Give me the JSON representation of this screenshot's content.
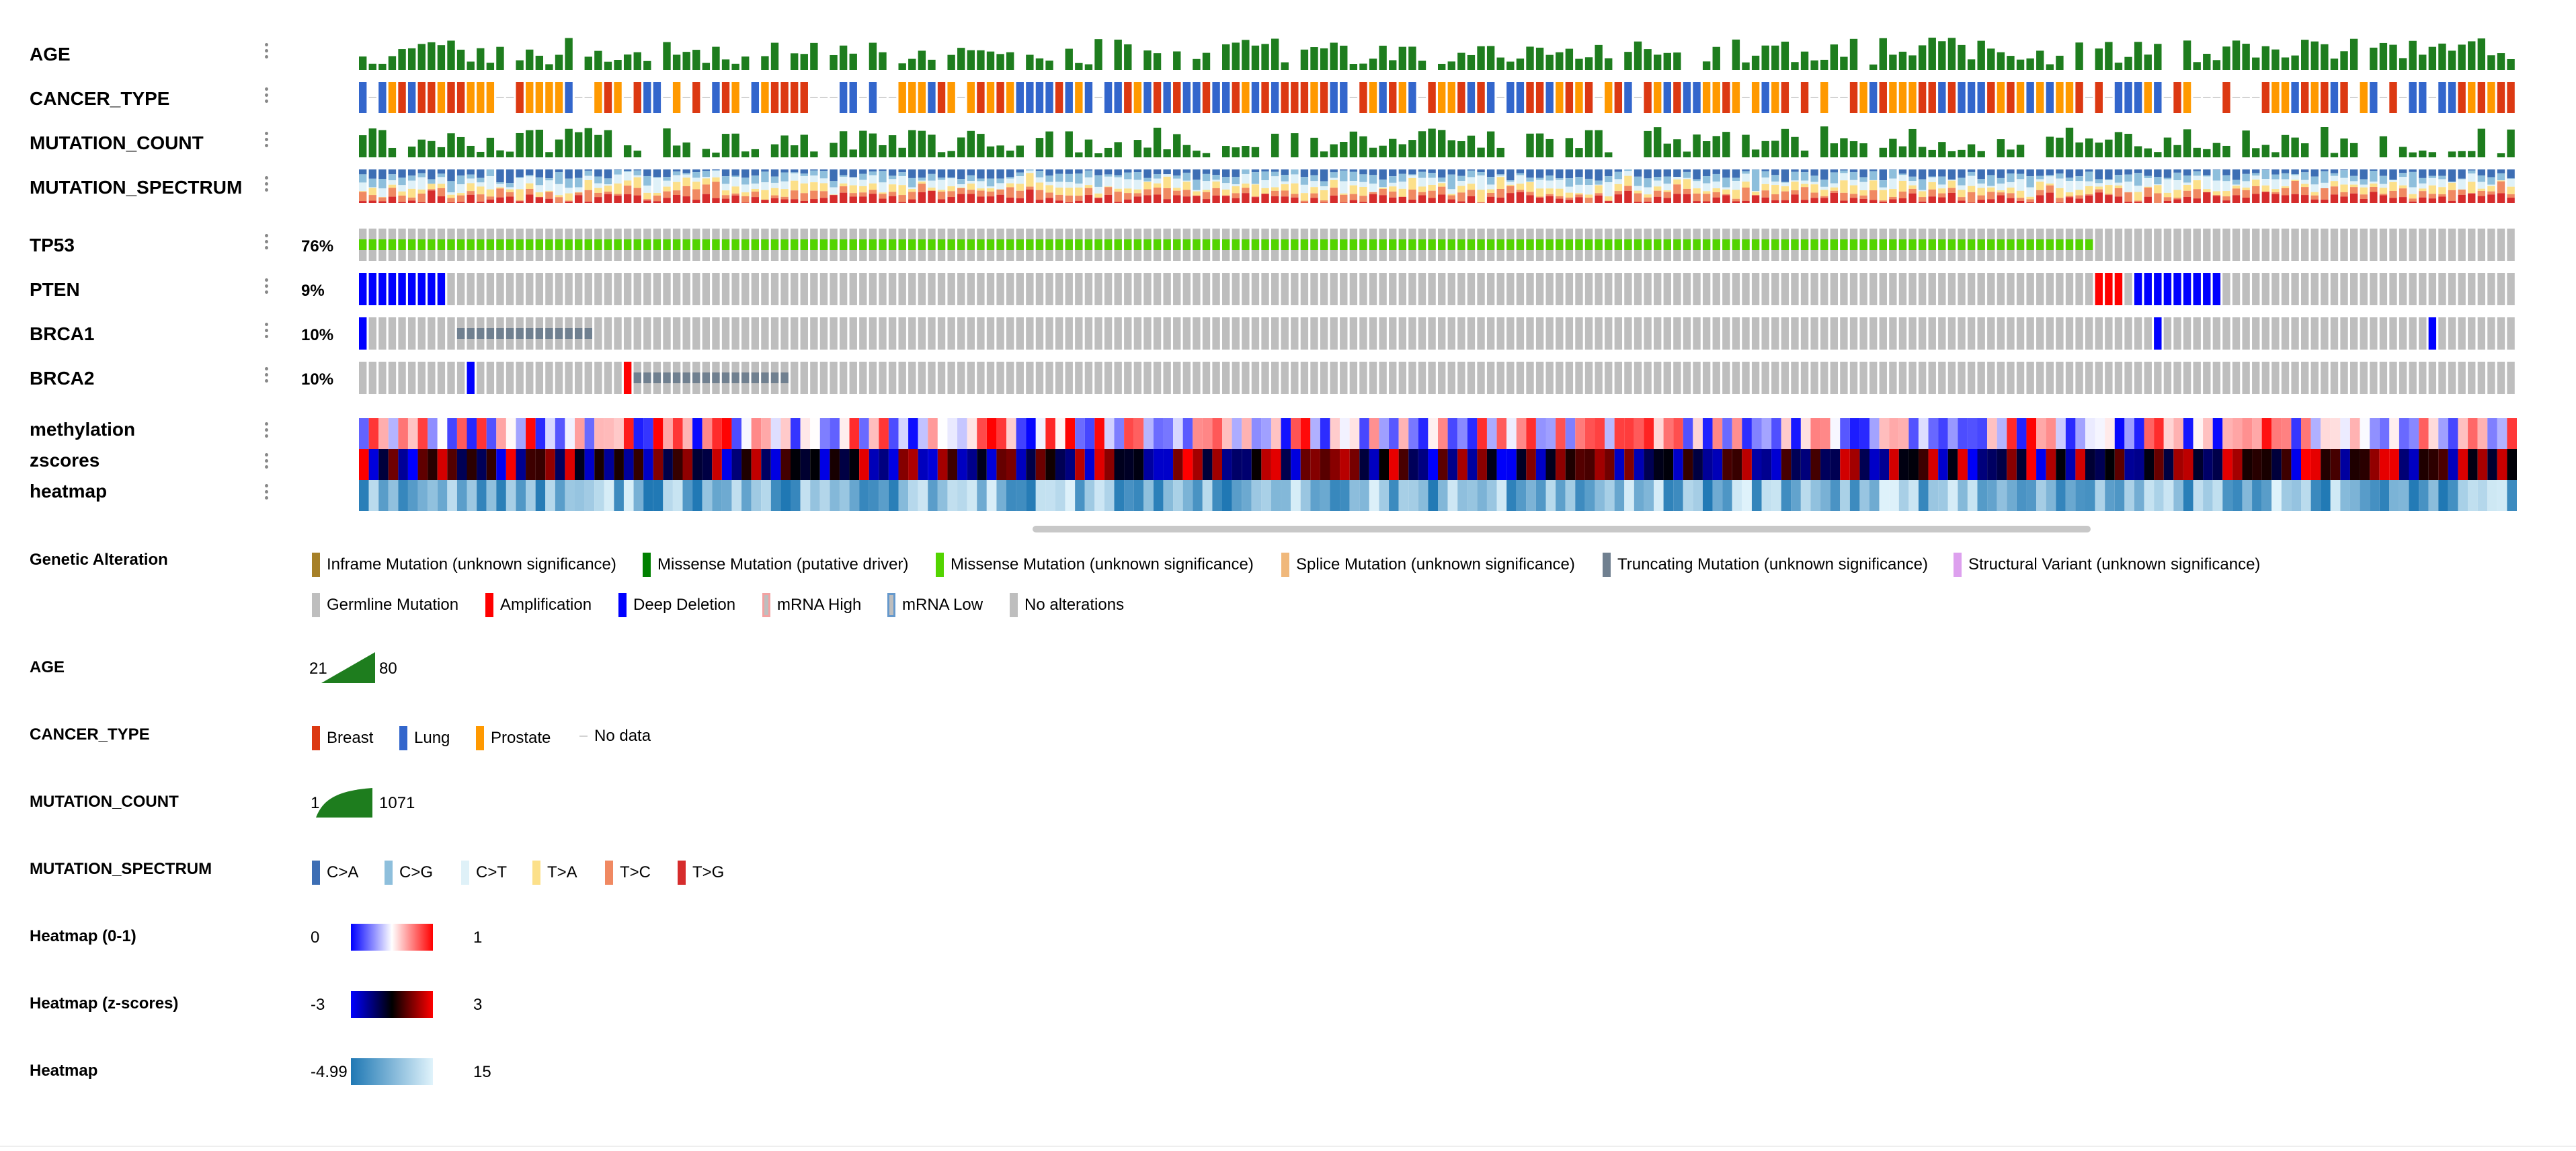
{
  "tracks": {
    "clinical": [
      {
        "id": "age",
        "label": "AGE"
      },
      {
        "id": "cancer_type",
        "label": "CANCER_TYPE"
      },
      {
        "id": "mutation_count",
        "label": "MUTATION_COUNT"
      },
      {
        "id": "mutation_spectrum",
        "label": "MUTATION_SPECTRUM"
      }
    ],
    "genes": [
      {
        "id": "tp53",
        "label": "TP53",
        "percent": "76%"
      },
      {
        "id": "pten",
        "label": "PTEN",
        "percent": "9%"
      },
      {
        "id": "brca1",
        "label": "BRCA1",
        "percent": "10%"
      },
      {
        "id": "brca2",
        "label": "BRCA2",
        "percent": "10%"
      }
    ],
    "heatmaps": [
      {
        "id": "methylation",
        "label": "methylation"
      },
      {
        "id": "zscores",
        "label": "zscores"
      },
      {
        "id": "heatmap",
        "label": "heatmap"
      }
    ]
  },
  "legend": {
    "genetic_alteration": {
      "title": "Genetic Alteration",
      "items": [
        {
          "label": "Inframe Mutation (unknown significance)",
          "color": "#a68028"
        },
        {
          "label": "Missense Mutation (putative driver)",
          "color": "#008000"
        },
        {
          "label": "Missense Mutation (unknown significance)",
          "color": "#53d400"
        },
        {
          "label": "Splice Mutation (unknown significance)",
          "color": "#f0b87b"
        },
        {
          "label": "Truncating Mutation (unknown significance)",
          "color": "#708090"
        },
        {
          "label": "Structural Variant (unknown significance)",
          "color": "#dda0ee"
        },
        {
          "label": "Germline Mutation",
          "color": "#bebebe"
        },
        {
          "label": "Amplification",
          "color": "#ff0000"
        },
        {
          "label": "Deep Deletion",
          "color": "#0000ff"
        },
        {
          "label": "mRNA High",
          "color": "#f2a2a2"
        },
        {
          "label": "mRNA Low",
          "color": "#6699cc"
        },
        {
          "label": "No alterations",
          "color": "#bebebe"
        }
      ]
    },
    "age": {
      "title": "AGE",
      "min": "21",
      "max": "80",
      "color": "#1e7d1e"
    },
    "cancer_type": {
      "title": "CANCER_TYPE",
      "items": [
        {
          "label": "Breast",
          "color": "#dc3912"
        },
        {
          "label": "Lung",
          "color": "#3366cc"
        },
        {
          "label": "Prostate",
          "color": "#ff9900"
        },
        {
          "label": "No data",
          "color": "#d3d3d3"
        }
      ]
    },
    "mutation_count": {
      "title": "MUTATION_COUNT",
      "min": "1",
      "max": "1071",
      "color": "#1e7d1e"
    },
    "mutation_spectrum": {
      "title": "MUTATION_SPECTRUM",
      "items": [
        {
          "label": "C>A",
          "color": "#3d6eb4"
        },
        {
          "label": "C>G",
          "color": "#8ebfdc"
        },
        {
          "label": "C>T",
          "color": "#dff1f8"
        },
        {
          "label": "T>A",
          "color": "#fce08a"
        },
        {
          "label": "T>C",
          "color": "#f08962"
        },
        {
          "label": "T>G",
          "color": "#d62c2c"
        }
      ]
    },
    "heatmap_01": {
      "title": "Heatmap (0-1)",
      "min": "0",
      "max": "1"
    },
    "heatmap_z": {
      "title": "Heatmap (z-scores)",
      "min": "-3",
      "max": "3"
    },
    "heatmap_plain": {
      "title": "Heatmap",
      "min": "-4.99",
      "max": "15"
    }
  },
  "colors": {
    "no_alteration": "#bebebe",
    "missense_driver": "#008000",
    "missense_vus": "#53d400",
    "truncating": "#708090",
    "splice": "#f0b87b",
    "amp": "#ff0000",
    "deep_del": "#0000ff",
    "heatmap_blue_light": "#e0f3fb",
    "heatmap_blue_dark": "#1f78b4"
  }
}
